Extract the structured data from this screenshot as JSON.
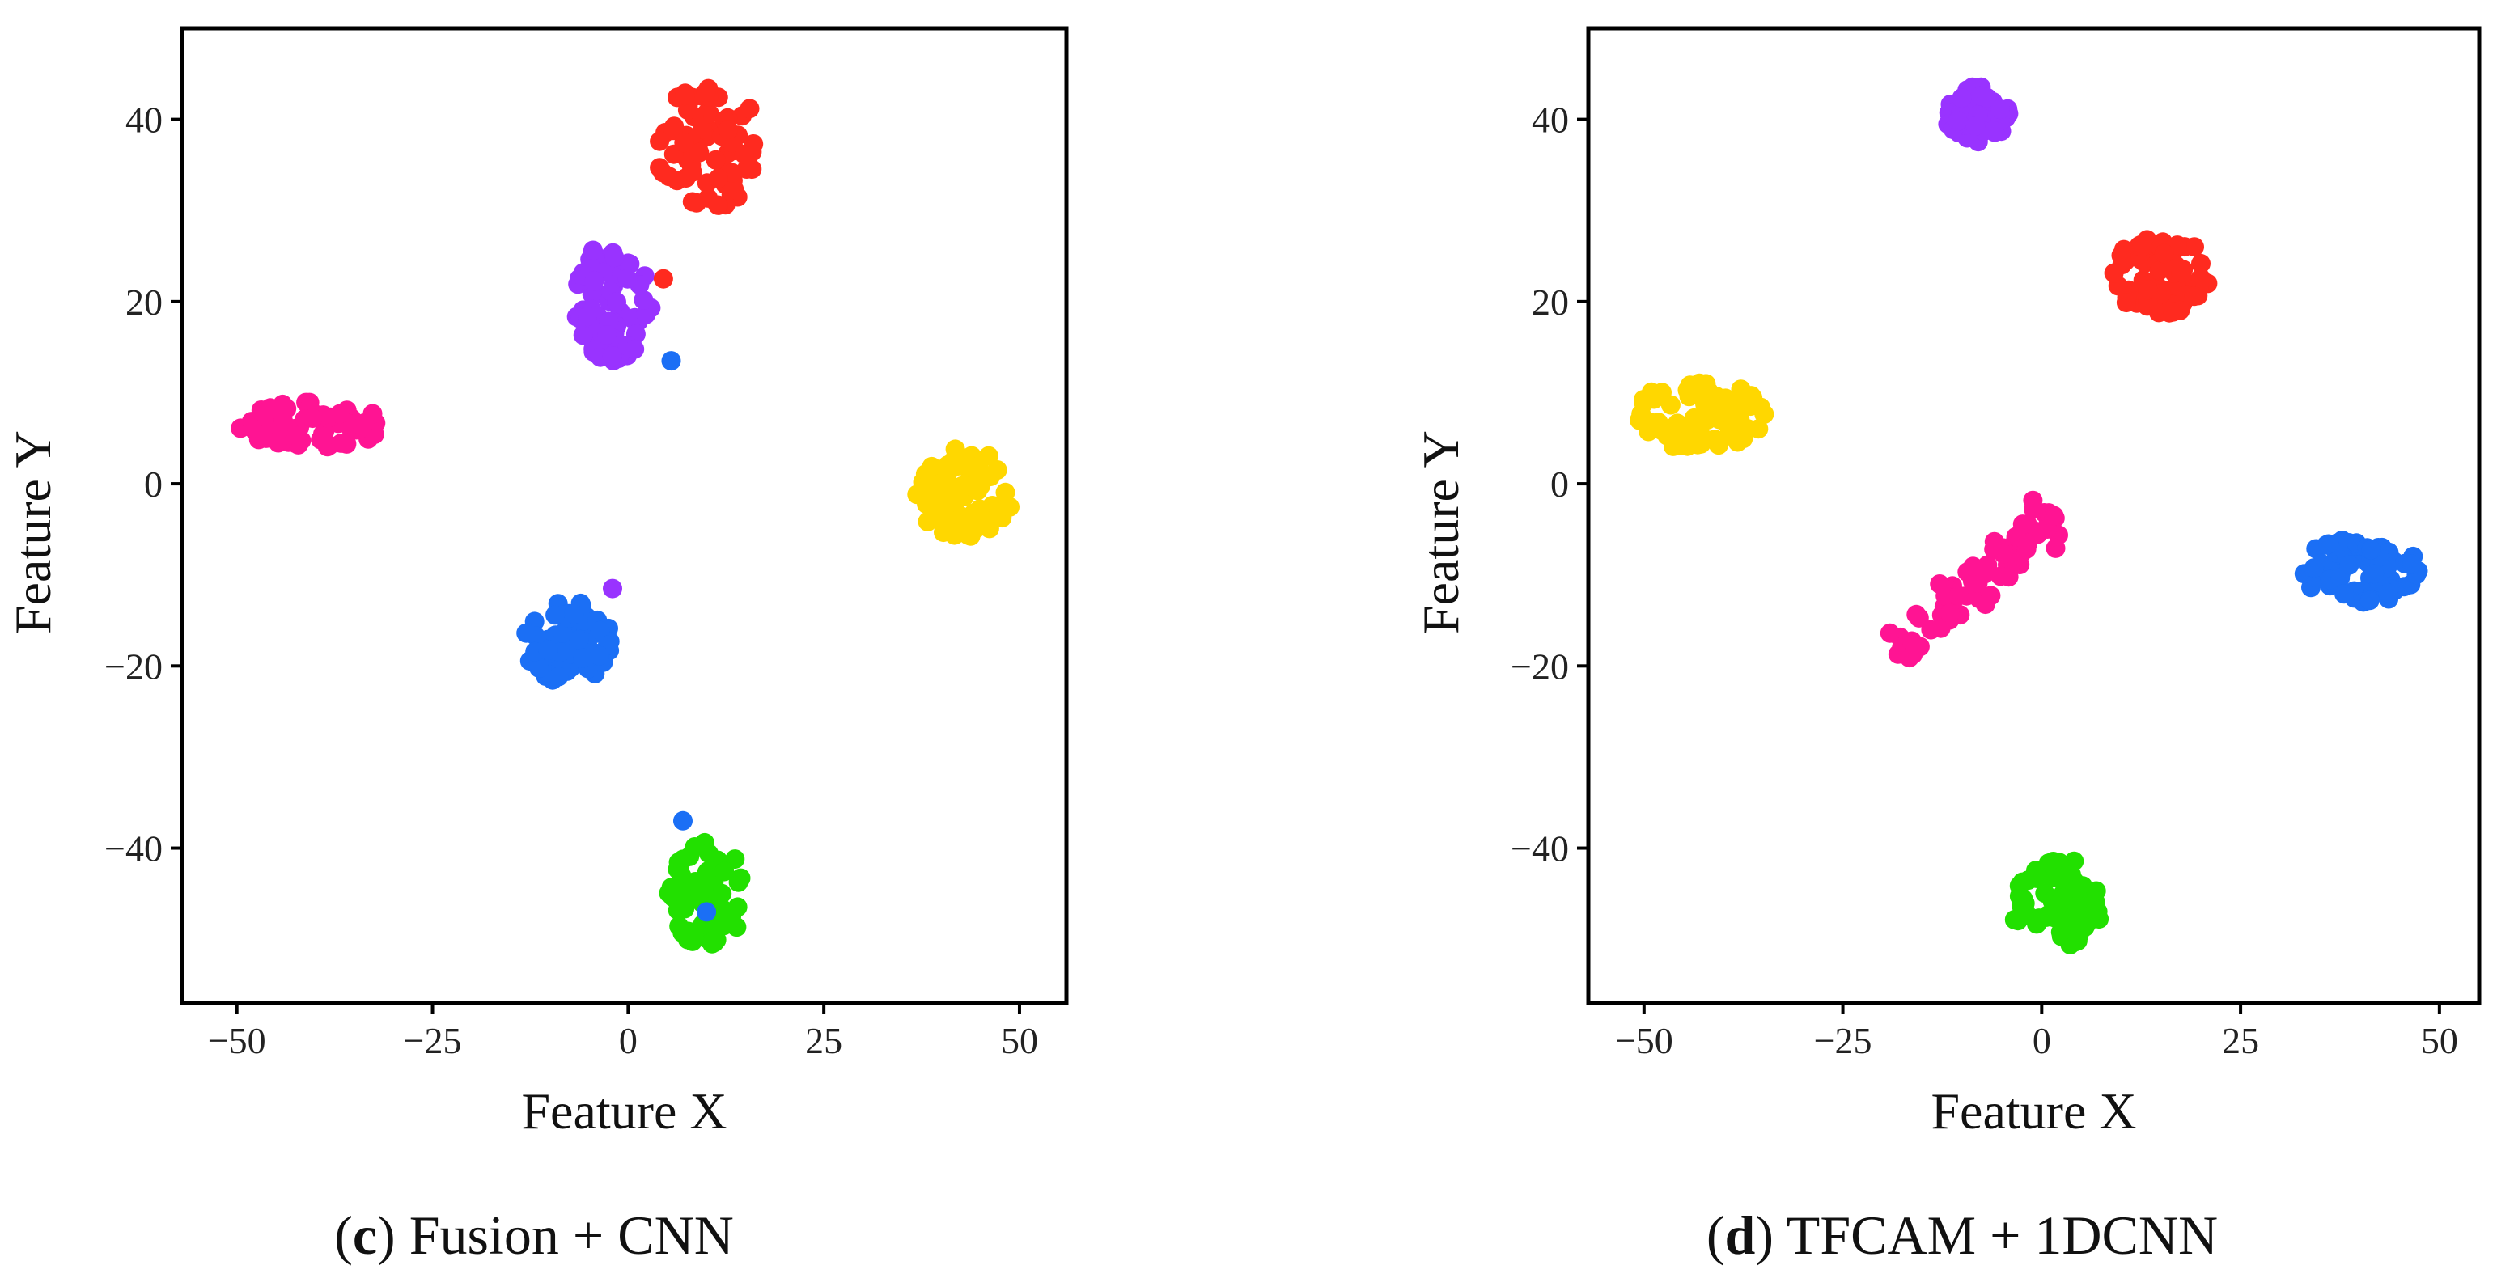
{
  "colors": {
    "red": "#ff2a1f",
    "purple": "#9933ff",
    "magenta": "#ff1493",
    "yellow": "#ffd700",
    "blue": "#1b6ff5",
    "green": "#22e000"
  },
  "captions": [
    {
      "letter": "c",
      "text": " Fusion + CNN"
    },
    {
      "letter": "d",
      "text": " TFCAM + 1DCNN"
    }
  ],
  "chart_data": [
    {
      "type": "scatter",
      "title": "(c) Fusion + CNN",
      "xlabel": "Feature X",
      "ylabel": "Feature Y",
      "xlim": [
        -57,
        56
      ],
      "ylim": [
        -57,
        50
      ],
      "xticks": [
        -50,
        -25,
        0,
        25,
        50
      ],
      "xtick_labels": [
        "−50",
        "−25",
        "0",
        "25",
        "50"
      ],
      "yticks": [
        -40,
        -20,
        0,
        20,
        40
      ],
      "ytick_labels": [
        "−40",
        "−20",
        "0",
        "20",
        "40"
      ],
      "grid": false,
      "clusters": [
        {
          "color": "red",
          "center": [
            10,
            37
          ],
          "spread": [
            4.5,
            4.5
          ],
          "n": 70
        },
        {
          "color": "purple",
          "center": [
            -2,
            20
          ],
          "spread": [
            3.2,
            4.2
          ],
          "n": 70
        },
        {
          "color": "magenta",
          "center": [
            -40,
            6.5
          ],
          "spread": [
            6.5,
            1.6
          ],
          "n": 75
        },
        {
          "color": "yellow",
          "center": [
            43,
            -1
          ],
          "spread": [
            4.2,
            3.2
          ],
          "n": 70
        },
        {
          "color": "blue",
          "center": [
            -8,
            -17.5
          ],
          "spread": [
            3.8,
            3
          ],
          "n": 70
        },
        {
          "color": "green",
          "center": [
            10,
            -45
          ],
          "spread": [
            3.2,
            3.8
          ],
          "n": 70
        }
      ],
      "outliers": [
        {
          "color": "red",
          "x": 4.5,
          "y": 22.5
        },
        {
          "color": "purple",
          "x": -2,
          "y": -11.5
        },
        {
          "color": "blue",
          "x": 5.5,
          "y": 13.5
        },
        {
          "color": "blue",
          "x": 7,
          "y": -37
        },
        {
          "color": "blue",
          "x": 10,
          "y": -47
        }
      ]
    },
    {
      "type": "scatter",
      "title": "(d) TFCAM + 1DCNN",
      "xlabel": "Feature X",
      "ylabel": "Feature Y",
      "xlim": [
        -57,
        55
      ],
      "ylim": [
        -57,
        50
      ],
      "xticks": [
        -50,
        -25,
        0,
        25,
        50
      ],
      "xtick_labels": [
        "−50",
        "−25",
        "0",
        "25",
        "50"
      ],
      "yticks": [
        -40,
        -20,
        0,
        20,
        40
      ],
      "ytick_labels": [
        "−40",
        "−20",
        "0",
        "20",
        "40"
      ],
      "grid": false,
      "clusters": [
        {
          "color": "purple",
          "center": [
            -8,
            40.5
          ],
          "spread": [
            2.6,
            2
          ],
          "n": 55
        },
        {
          "color": "red",
          "center": [
            15,
            23
          ],
          "spread": [
            4.2,
            2.8
          ],
          "n": 70
        },
        {
          "color": "yellow",
          "center": [
            -43,
            7.5
          ],
          "spread": [
            5.5,
            2.4
          ],
          "n": 75
        },
        {
          "color": "blue",
          "center": [
            40,
            -9.5
          ],
          "spread": [
            4.8,
            2.4
          ],
          "n": 75
        },
        {
          "color": "green",
          "center": [
            2,
            -46
          ],
          "spread": [
            3.8,
            3.2
          ],
          "n": 70
        }
      ],
      "line_clusters": [
        {
          "color": "magenta",
          "from": [
            -18,
            -18
          ],
          "to": [
            2,
            -3
          ],
          "width": 1.8,
          "n": 70
        }
      ],
      "outliers": []
    }
  ]
}
